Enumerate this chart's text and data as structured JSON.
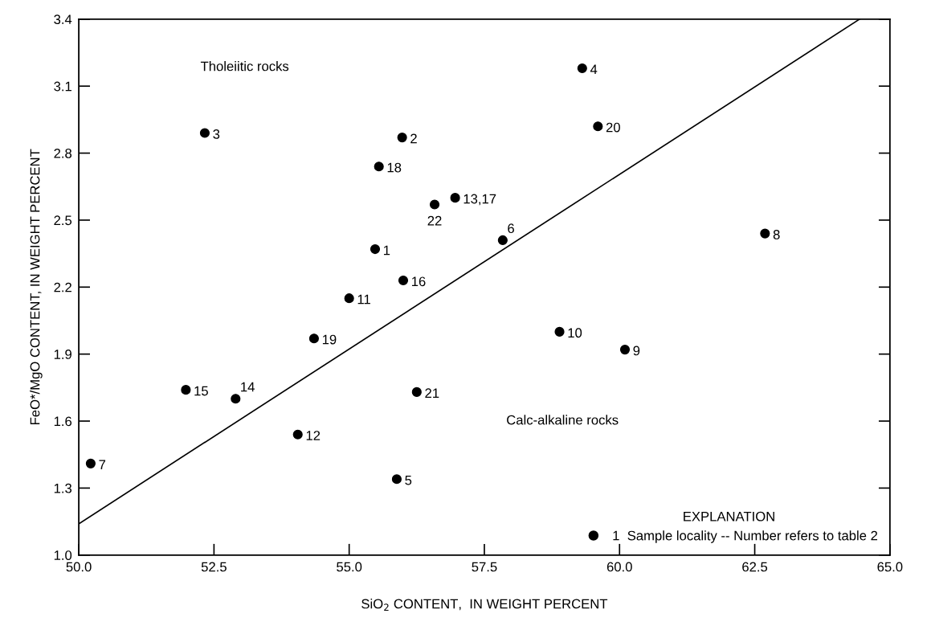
{
  "chart_data": {
    "type": "scatter",
    "xlabel": "SiO$_{2}$ CONTENT,  IN WEIGHT PERCENT",
    "ylabel": "FeO*/MgO CONTENT, IN WEIGHT PERCENT",
    "legend_title": "EXPLANATION",
    "legend": "bottom right",
    "annotations": [
      "Tholeiitic rocks",
      "Calc-alkaline rocks",
      {
        "text": "1",
        "x": 55.48,
        "y": 2.37
      },
      {
        "text": "2",
        "x": 55.98,
        "y": 2.87
      },
      {
        "text": "3",
        "x": 52.33,
        "y": 2.89
      },
      {
        "text": "4",
        "x": 59.31,
        "y": 3.18
      },
      {
        "text": "5",
        "x": 55.88,
        "y": 1.34
      },
      {
        "text": "6",
        "x": 57.84,
        "y": 2.41
      },
      {
        "text": "7",
        "x": 50.22,
        "y": 1.41
      },
      {
        "text": "8",
        "x": 62.69,
        "y": 2.44
      },
      {
        "text": "9",
        "x": 60.1,
        "y": 1.92
      },
      {
        "text": "10",
        "x": 58.89,
        "y": 2.0
      },
      {
        "text": "11",
        "x": 55.0,
        "y": 2.15
      },
      {
        "text": "12",
        "x": 54.05,
        "y": 1.54
      },
      {
        "text": "13,17",
        "x": 56.96,
        "y": 2.6
      },
      {
        "text": "14",
        "x": 52.9,
        "y": 1.7
      },
      {
        "text": "15",
        "x": 51.98,
        "y": 1.74
      },
      {
        "text": "16",
        "x": 56.0,
        "y": 2.23
      },
      {
        "text": "18",
        "x": 55.55,
        "y": 2.74
      },
      {
        "text": "19",
        "x": 54.35,
        "y": 1.97
      },
      {
        "text": "20",
        "x": 59.6,
        "y": 2.92
      },
      {
        "text": "21",
        "x": 56.25,
        "y": 1.73
      },
      {
        "text": "22",
        "x": 56.58,
        "y": 2.57
      }
    ],
    "xlim": [
      50,
      65
    ],
    "ylim": [
      1.0,
      3.4
    ],
    "xticks": [
      {
        "value": 50,
        "label": "50.0"
      },
      52.5,
      {
        "value": 55,
        "label": "55.0"
      },
      57.5,
      {
        "value": 60,
        "label": "60.0"
      },
      62.5,
      {
        "value": 65,
        "label": "65.0"
      }
    ],
    "yticks": [
      {
        "value": 1,
        "label": "1.0"
      },
      1.3,
      1.6,
      1.9,
      2.2,
      2.5,
      2.8,
      3.1,
      3.4
    ],
    "series": [
      {
        "marker": "circle",
        "color": "#000000",
        "name": "1  Sample locality -- Number refers to table 2",
        "x": [
          55.48,
          55.98,
          52.33,
          59.31,
          55.88,
          57.84,
          50.22,
          62.69,
          60.1,
          58.89,
          55.0,
          54.05,
          56.96,
          52.9,
          51.98,
          56.0,
          55.55,
          54.35,
          59.6,
          56.25,
          56.58
        ],
        "values": [
          2.37,
          2.87,
          2.89,
          3.18,
          1.34,
          2.41,
          1.41,
          2.44,
          1.92,
          2.0,
          2.15,
          1.54,
          2.6,
          1.7,
          1.74,
          2.23,
          2.74,
          1.97,
          2.92,
          1.73,
          2.57
        ]
      },
      {
        "type": "line",
        "color": "#000000",
        "x": [
          50,
          64.44
        ],
        "values": [
          1.14,
          3.4
        ]
      }
    ]
  }
}
